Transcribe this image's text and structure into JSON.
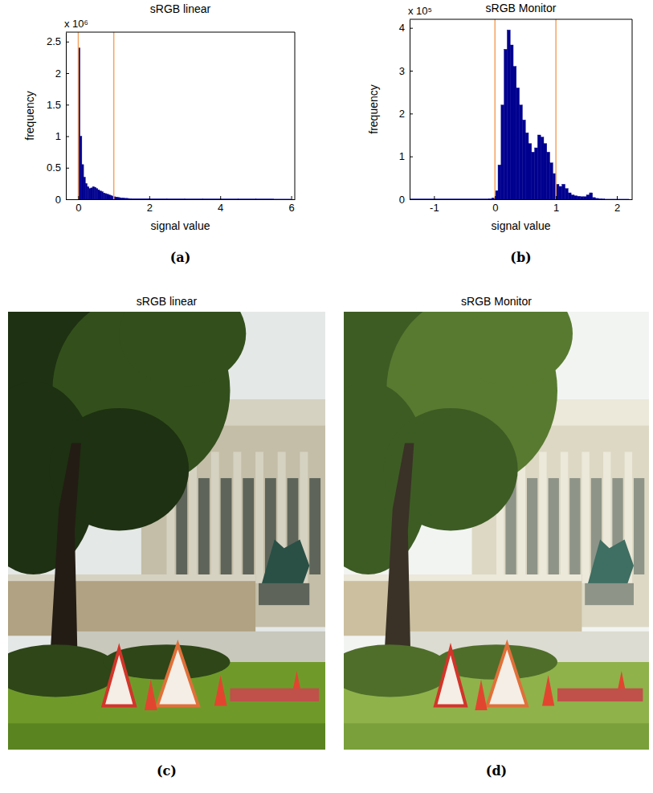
{
  "chart_data": [
    {
      "type": "histogram",
      "title": "sRGB linear",
      "panel_label": "(a)",
      "x_label": "signal value",
      "y_label": "frequency",
      "y_offset_text": "x 10⁶",
      "color": "#00008f",
      "bins": [
        0,
        0.05,
        0.1,
        0.15,
        0.2,
        0.25,
        0.3,
        0.35,
        0.4,
        0.45,
        0.5,
        0.55,
        0.6,
        0.65,
        0.7,
        0.75,
        0.8,
        0.85,
        0.9,
        0.95,
        1,
        1.05,
        1.1,
        1.15,
        1.2,
        1.25,
        1.3,
        1.35,
        1.4,
        1.45,
        1.5,
        2,
        2.5,
        3,
        3.5,
        4,
        4.5,
        5,
        5.5,
        6
      ],
      "counts": [
        2.4,
        1.0,
        0.55,
        0.35,
        0.25,
        0.2,
        0.17,
        0.18,
        0.2,
        0.19,
        0.17,
        0.15,
        0.13,
        0.12,
        0.1,
        0.09,
        0.08,
        0.07,
        0.06,
        0.05,
        0.04,
        0.035,
        0.03,
        0.025,
        0.02,
        0.02,
        0.015,
        0.015,
        0.012,
        0.01,
        0.008,
        0.006,
        0.005,
        0.004,
        0.004,
        0.003,
        0.003,
        0.003,
        0.002
      ],
      "reference_lines": [
        {
          "value": 0,
          "color": "#f4a460"
        },
        {
          "value": 1,
          "color": "#f4a460"
        }
      ],
      "xlim": [
        -0.35,
        6.1
      ],
      "xticks": [
        0,
        2,
        4,
        6
      ],
      "ylim": [
        0,
        2.65
      ],
      "yticks": [
        0,
        0.5,
        1,
        1.5,
        2,
        2.5
      ]
    },
    {
      "type": "histogram",
      "title": "sRGB Monitor",
      "panel_label": "(b)",
      "x_label": "signal value",
      "y_label": "frequency",
      "y_offset_text": "x 10⁵",
      "color": "#00008f",
      "bins": [
        -1.4,
        -0.1,
        -0.05,
        0,
        0.05,
        0.1,
        0.15,
        0.2,
        0.25,
        0.3,
        0.35,
        0.4,
        0.45,
        0.5,
        0.55,
        0.6,
        0.65,
        0.7,
        0.75,
        0.8,
        0.85,
        0.9,
        0.95,
        1,
        1.05,
        1.1,
        1.15,
        1.2,
        1.25,
        1.3,
        1.35,
        1.4,
        1.45,
        1.5,
        1.55,
        1.6,
        1.65,
        1.7,
        1.75,
        1.8,
        2.2
      ],
      "counts": [
        0.004,
        0.01,
        0.03,
        0.2,
        0.8,
        2.2,
        3.5,
        3.95,
        3.6,
        3.1,
        2.6,
        2.2,
        1.85,
        1.55,
        1.3,
        1.1,
        1.2,
        1.5,
        1.45,
        1.3,
        1.1,
        0.85,
        0.6,
        0.35,
        0.3,
        0.35,
        0.25,
        0.15,
        0.1,
        0.08,
        0.07,
        0.06,
        0.06,
        0.1,
        0.15,
        0.04,
        0.02,
        0.01,
        0.005,
        0.002
      ],
      "reference_lines": [
        {
          "value": 0,
          "color": "#f4a460"
        },
        {
          "value": 1,
          "color": "#f4a460"
        }
      ],
      "xlim": [
        -1.4,
        2.25
      ],
      "xticks": [
        -1,
        0,
        1,
        2
      ],
      "ylim": [
        0,
        4.2
      ],
      "yticks": [
        0,
        1,
        2,
        3,
        4
      ]
    }
  ],
  "images": [
    {
      "title": "sRGB linear",
      "panel_label": "(c)"
    },
    {
      "title": "sRGB Monitor",
      "panel_label": "(d)"
    }
  ]
}
